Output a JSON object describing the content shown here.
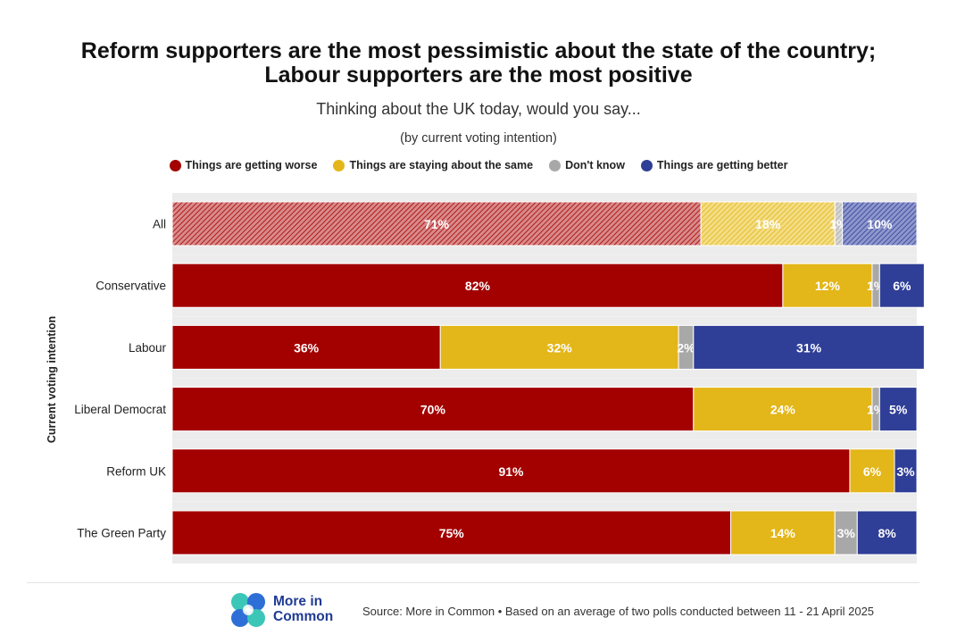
{
  "title_line1": "Reform supporters are the most pessimistic about the state of the country;",
  "title_line2": "Labour supporters are the most positive",
  "subtitle": "Thinking about the UK today, would you say...",
  "subtitle2": "(by current voting intention)",
  "source": "Source: More in Common • Based on an average of two polls conducted between 11 - 21 April 2025",
  "logo": {
    "line1": "More in",
    "line2": "Common"
  },
  "colors": {
    "worse": "#a30000",
    "same": "#e3b619",
    "dont_know": "#a8a8a8",
    "better": "#2f3e96",
    "row_bg": "#ececec",
    "logo_teal": "#3cc6b7",
    "logo_blue": "#2d6fd6"
  },
  "chart_data": {
    "type": "bar",
    "orientation": "horizontal",
    "stacked": true,
    "ylabel": "Current voting intention",
    "categories": [
      "All",
      "Conservative",
      "Labour",
      "Liberal Democrat",
      "Reform UK",
      "The Green Party"
    ],
    "series": [
      {
        "name": "Things are getting worse",
        "key": "worse",
        "values": [
          71,
          82,
          36,
          70,
          91,
          75
        ]
      },
      {
        "name": "Things are staying about the same",
        "key": "same",
        "values": [
          18,
          12,
          32,
          24,
          6,
          14
        ]
      },
      {
        "name": "Don't know",
        "key": "dont_know",
        "values": [
          1,
          1,
          2,
          1,
          0,
          3
        ]
      },
      {
        "name": "Things are getting better",
        "key": "better",
        "values": [
          10,
          6,
          31,
          5,
          3,
          8
        ]
      }
    ],
    "labels": [
      [
        "71%",
        "18%",
        "1%",
        "10%"
      ],
      [
        "82%",
        "12%",
        "1%",
        "6%"
      ],
      [
        "36%",
        "32%",
        "2%",
        "31%"
      ],
      [
        "70%",
        "24%",
        "1%",
        "5%"
      ],
      [
        "91%",
        "6%",
        "",
        "3%"
      ],
      [
        "75%",
        "14%",
        "3%",
        "8%"
      ]
    ],
    "hatched_categories": [
      "All"
    ],
    "xlim": [
      0,
      100
    ],
    "legend_position": "top-center"
  }
}
